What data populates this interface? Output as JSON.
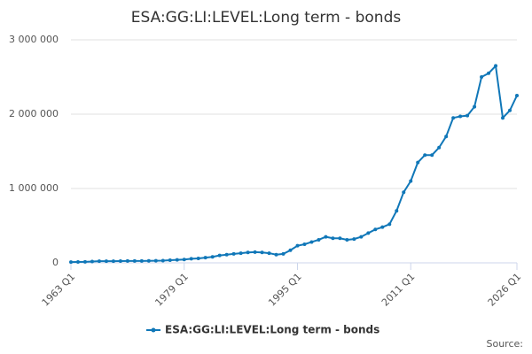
{
  "chart_data": {
    "type": "line",
    "title": "ESA:GG:LI:LEVEL:Long term - bonds",
    "source": "Source:",
    "categories": [
      "1963 Q1",
      null,
      null,
      null,
      null,
      null,
      null,
      null,
      null,
      null,
      null,
      null,
      null,
      null,
      null,
      null,
      "1979 Q1",
      null,
      null,
      null,
      null,
      null,
      null,
      null,
      null,
      null,
      null,
      null,
      null,
      null,
      null,
      null,
      "1995 Q1",
      null,
      null,
      null,
      null,
      null,
      null,
      null,
      null,
      null,
      null,
      null,
      null,
      null,
      null,
      null,
      "2011 Q1",
      null,
      null,
      null,
      null,
      null,
      null,
      null,
      null,
      null,
      null,
      null,
      null,
      null,
      null,
      "2026 Q1"
    ],
    "series": [
      {
        "name": "ESA:GG:LI:LEVEL:Long term - bonds",
        "color": "#1077b8",
        "values": [
          10000,
          12000,
          14000,
          18000,
          22000,
          22000,
          23000,
          24000,
          25000,
          25000,
          26000,
          27000,
          28000,
          30000,
          35000,
          40000,
          45000,
          55000,
          60000,
          70000,
          80000,
          100000,
          110000,
          120000,
          130000,
          140000,
          145000,
          140000,
          130000,
          110000,
          120000,
          170000,
          230000,
          250000,
          280000,
          310000,
          350000,
          330000,
          330000,
          310000,
          320000,
          350000,
          400000,
          450000,
          480000,
          520000,
          700000,
          950000,
          1100000,
          1350000,
          1450000,
          1450000,
          1550000,
          1700000,
          1950000,
          1970000,
          1980000,
          2100000,
          2500000,
          2550000,
          2650000,
          1950000,
          2050000,
          2250000
        ]
      }
    ],
    "ylim": [
      0,
      3000000
    ],
    "yticks": [
      0,
      {
        "value": 1000000,
        "label": "1 000 000"
      },
      {
        "value": 2000000,
        "label": "2 000 000"
      },
      {
        "value": 3000000,
        "label": "3 000 000"
      }
    ],
    "grid": true
  }
}
